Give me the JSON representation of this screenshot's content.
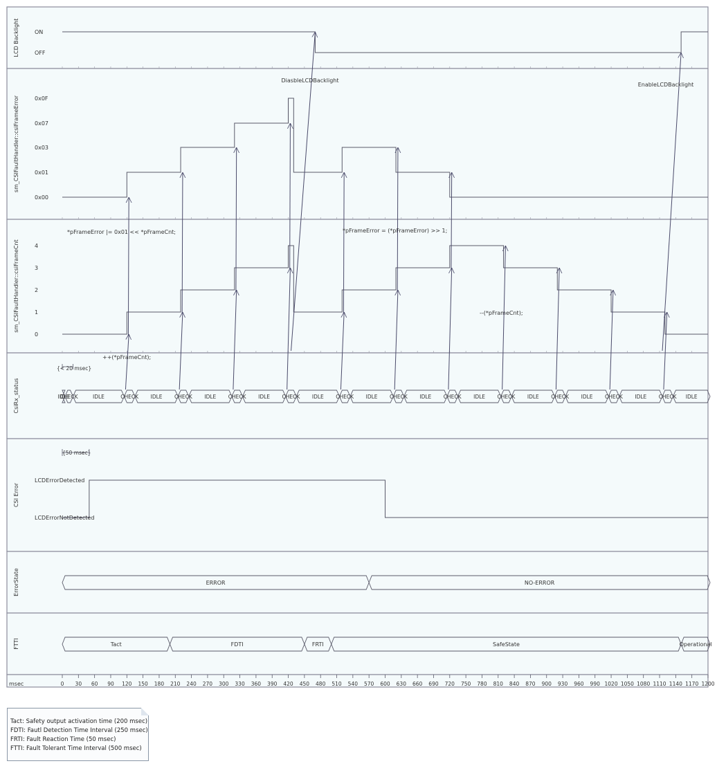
{
  "lanes": [
    {
      "id": "lcd",
      "label": "LCD Backlight",
      "states": [
        "ON",
        "OFF"
      ]
    },
    {
      "id": "frameerror",
      "label": "sm_CSIFaultHandler::csiFrameError",
      "states": [
        "0x0F",
        "0x07",
        "0x03",
        "0x01",
        "0x00"
      ]
    },
    {
      "id": "framecnt",
      "label": "sm_CSIFaultHandler::csiFrameCnt",
      "states": [
        "4",
        "3",
        "2",
        "1",
        "0"
      ]
    },
    {
      "id": "csirx",
      "label": "CsiRx_status"
    },
    {
      "id": "csierror",
      "label": "CSI Error",
      "states": [
        "LCDErrorDetected",
        "LCDErrorNotDetected"
      ]
    },
    {
      "id": "errorstate",
      "label": "ErrorState"
    },
    {
      "id": "ftti",
      "label": "FTTI"
    }
  ],
  "time_axis": {
    "unit": "msec",
    "ticks": [
      "0",
      "30",
      "60",
      "90",
      "120",
      "150",
      "180",
      "210",
      "240",
      "270",
      "300",
      "330",
      "360",
      "390",
      "420",
      "450",
      "480",
      "510",
      "540",
      "570",
      "600",
      "630",
      "660",
      "690",
      "720",
      "750",
      "780",
      "810",
      "840",
      "870",
      "900",
      "930",
      "960",
      "990",
      "1020",
      "1050",
      "1080",
      "1110",
      "1140",
      "1170",
      "1200"
    ]
  },
  "csirx_segments": [
    {
      "label": "IDLE",
      "t0": 0,
      "t1": 5
    },
    {
      "label": "CHECK",
      "t0": 5,
      "t1": 20
    },
    {
      "label": "IDLE",
      "t0": 20,
      "t1": 115
    },
    {
      "label": "CHECK",
      "t0": 115,
      "t1": 135
    },
    {
      "label": "IDLE",
      "t0": 135,
      "t1": 215
    },
    {
      "label": "CHECK",
      "t0": 215,
      "t1": 235
    },
    {
      "label": "IDLE",
      "t0": 235,
      "t1": 315
    },
    {
      "label": "CHECK",
      "t0": 315,
      "t1": 335
    },
    {
      "label": "IDLE",
      "t0": 335,
      "t1": 415
    },
    {
      "label": "CHECK",
      "t0": 415,
      "t1": 435
    },
    {
      "label": "IDLE",
      "t0": 435,
      "t1": 515
    },
    {
      "label": "CHECK",
      "t0": 515,
      "t1": 535
    },
    {
      "label": "IDLE",
      "t0": 535,
      "t1": 615
    },
    {
      "label": "CHECK",
      "t0": 615,
      "t1": 635
    },
    {
      "label": "IDLE",
      "t0": 635,
      "t1": 715
    },
    {
      "label": "CHECK",
      "t0": 715,
      "t1": 735
    },
    {
      "label": "IDLE",
      "t0": 735,
      "t1": 815
    },
    {
      "label": "CHECK",
      "t0": 815,
      "t1": 835
    },
    {
      "label": "IDLE",
      "t0": 835,
      "t1": 915
    },
    {
      "label": "CHECK",
      "t0": 915,
      "t1": 935
    },
    {
      "label": "IDLE",
      "t0": 935,
      "t1": 1015
    },
    {
      "label": "CHECK",
      "t0": 1015,
      "t1": 1035
    },
    {
      "label": "IDLE",
      "t0": 1035,
      "t1": 1115
    },
    {
      "label": "CHECK",
      "t0": 1115,
      "t1": 1135
    },
    {
      "label": "IDLE",
      "t0": 1135,
      "t1": 1205
    }
  ],
  "frameerror_steps": [
    {
      "t": 0,
      "v": "0x00"
    },
    {
      "t": 120,
      "v": "0x01"
    },
    {
      "t": 220,
      "v": "0x03"
    },
    {
      "t": 320,
      "v": "0x07"
    },
    {
      "t": 420,
      "v": "0x0F"
    },
    {
      "t": 430,
      "v": "0x01"
    },
    {
      "t": 520,
      "v": "0x03"
    },
    {
      "t": 620,
      "v": "0x01"
    },
    {
      "t": 720,
      "v": "0x00"
    }
  ],
  "framecnt_steps": [
    {
      "t": 0,
      "v": "0"
    },
    {
      "t": 120,
      "v": "1"
    },
    {
      "t": 220,
      "v": "2"
    },
    {
      "t": 320,
      "v": "3"
    },
    {
      "t": 420,
      "v": "4"
    },
    {
      "t": 430,
      "v": "1"
    },
    {
      "t": 520,
      "v": "2"
    },
    {
      "t": 620,
      "v": "3"
    },
    {
      "t": 720,
      "v": "4"
    },
    {
      "t": 820,
      "v": "3"
    },
    {
      "t": 920,
      "v": "2"
    },
    {
      "t": 1020,
      "v": "1"
    },
    {
      "t": 1120,
      "v": "0"
    }
  ],
  "lcd_steps": [
    {
      "t": 0,
      "v": "ON"
    },
    {
      "t": 470,
      "v": "OFF"
    },
    {
      "t": 1150,
      "v": "ON"
    }
  ],
  "csierror_steps": [
    {
      "t": 0,
      "v": "LCDErrorNotDetected"
    },
    {
      "t": 50,
      "v": "LCDErrorDetected"
    },
    {
      "t": 600,
      "v": "LCDErrorNotDetected"
    }
  ],
  "errorstate_segments": [
    {
      "label": "ERROR",
      "t0": 0,
      "t1": 570
    },
    {
      "label": "NO-ERROR",
      "t0": 570,
      "t1": 1205
    }
  ],
  "ftti_segments": [
    {
      "label": "Tact",
      "t0": 0,
      "t1": 200
    },
    {
      "label": "FDTI",
      "t0": 200,
      "t1": 450
    },
    {
      "label": "FRTI",
      "t0": 450,
      "t1": 500
    },
    {
      "label": "SafeState",
      "t0": 500,
      "t1": 1150
    },
    {
      "label": "Operational",
      "t0": 1150,
      "t1": 1205
    }
  ],
  "annotations": {
    "disable_backlight": "DiasbleLCDBacklight",
    "enable_backlight": "EnableLCDBacklight",
    "or_shift": "*pFrameError |= 0x01 << *pFrameCnt;",
    "shift_right": "*pFrameError = (*pFrameError) >> 1;",
    "decrement": "--(*pFrameCnt);",
    "increment": "++(*pFrameCnt);",
    "constraint_20": "{< 20 msec}",
    "constraint_50": "{50 msec}"
  },
  "note_lines": [
    "Tact: Safety output activation time (200 msec)",
    "FDTI: Fautl Detection Time Interval (250 msec)",
    "FRTI: Fault Reaction Time (50 msec)",
    "FTTI: Fault Tolerant Time Interval (500 msec)"
  ],
  "colors": {
    "background": "#f4fafb",
    "border": "#8c8c9c",
    "line": "#5a5a6a",
    "message": "#4a4a6a",
    "text": "#333333"
  }
}
